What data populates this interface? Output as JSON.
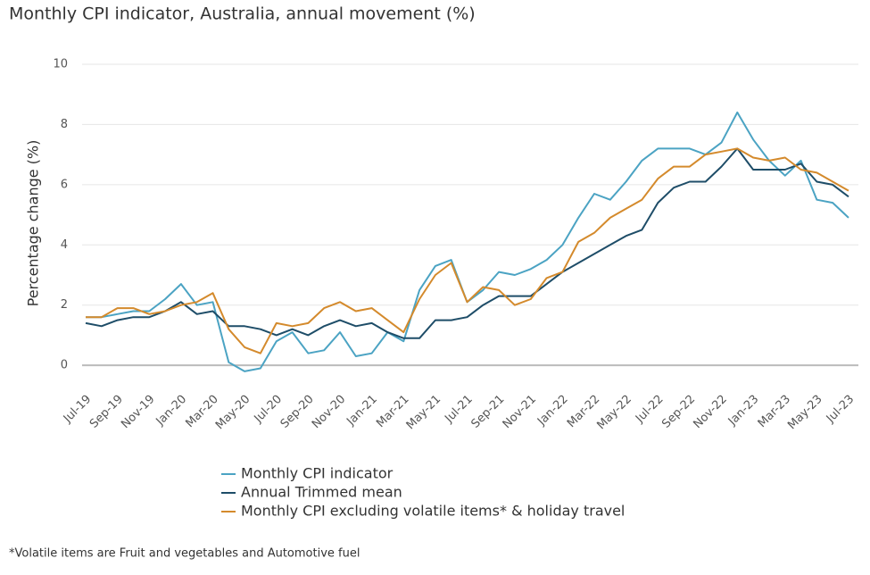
{
  "chart_data": {
    "type": "line",
    "title": "Monthly CPI indicator, Australia, annual movement (%)",
    "y_label": "Percentage change (%)",
    "note": "*Volatile items are Fruit and vegetables and Automotive fuel",
    "categories": [
      "Jul-19",
      null,
      "Sep-19",
      null,
      "Nov-19",
      null,
      "Jan-20",
      null,
      "Mar-20",
      null,
      "May-20",
      null,
      "Jul-20",
      null,
      "Sep-20",
      null,
      "Nov-20",
      null,
      "Jan-21",
      null,
      "Mar-21",
      null,
      "May-21",
      null,
      "Jul-21",
      null,
      "Sep-21",
      null,
      "Nov-21",
      null,
      "Jan-22",
      null,
      "Mar-22",
      null,
      "May-22",
      null,
      "Jul-22",
      null,
      "Sep-22",
      null,
      "Nov-22",
      null,
      "Jan-23",
      null,
      "Mar-23",
      null,
      "May-23",
      null,
      "Jul-23"
    ],
    "series": [
      {
        "name": "Monthly CPI indicator",
        "color": "#4ba3c3",
        "values": [
          1.6,
          1.6,
          1.7,
          1.8,
          1.8,
          2.2,
          2.7,
          2.0,
          2.1,
          0.1,
          -0.2,
          -0.1,
          0.8,
          1.1,
          0.4,
          0.5,
          1.1,
          0.3,
          0.4,
          1.1,
          0.8,
          2.5,
          3.3,
          3.5,
          2.1,
          2.5,
          3.1,
          3.0,
          3.2,
          3.5,
          4.0,
          4.9,
          5.7,
          5.5,
          6.1,
          6.8,
          7.2,
          7.2,
          7.2,
          7.0,
          7.4,
          8.4,
          7.5,
          6.8,
          6.3,
          6.8,
          5.5,
          5.4,
          4.9
        ]
      },
      {
        "name": "Annual Trimmed mean",
        "color": "#1e4d68",
        "values": [
          1.4,
          1.3,
          1.5,
          1.6,
          1.6,
          1.8,
          2.1,
          1.7,
          1.8,
          1.3,
          1.3,
          1.2,
          1.0,
          1.2,
          1.0,
          1.3,
          1.5,
          1.3,
          1.4,
          1.1,
          0.9,
          0.9,
          1.5,
          1.5,
          1.6,
          2.0,
          2.3,
          2.3,
          2.3,
          2.7,
          3.1,
          3.4,
          3.7,
          4.0,
          4.3,
          4.5,
          5.4,
          5.9,
          6.1,
          6.1,
          6.6,
          7.2,
          6.5,
          6.5,
          6.5,
          6.7,
          6.1,
          6.0,
          5.6
        ]
      },
      {
        "name": "Monthly CPI excluding volatile items* & holiday travel",
        "color": "#d48a2c",
        "values": [
          1.6,
          1.6,
          1.9,
          1.9,
          1.7,
          1.8,
          2.0,
          2.1,
          2.4,
          1.2,
          0.6,
          0.4,
          1.4,
          1.3,
          1.4,
          1.9,
          2.1,
          1.8,
          1.9,
          1.5,
          1.1,
          2.2,
          3.0,
          3.4,
          2.1,
          2.6,
          2.5,
          2.0,
          2.2,
          2.9,
          3.1,
          4.1,
          4.4,
          4.9,
          5.2,
          5.5,
          6.2,
          6.6,
          6.6,
          7.0,
          7.1,
          7.2,
          6.9,
          6.8,
          6.9,
          6.5,
          6.4,
          6.1,
          5.8
        ]
      }
    ],
    "ylim": [
      -0.5,
      10
    ],
    "yticks": [
      0,
      2,
      4,
      6,
      8,
      10
    ],
    "grid": true
  }
}
